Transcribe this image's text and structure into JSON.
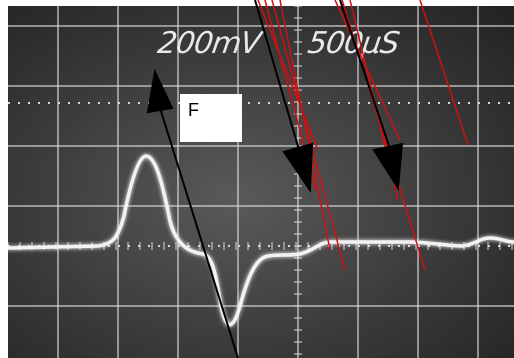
{
  "scope": {
    "volts_per_div": "200mV",
    "time_per_div": "500µS"
  },
  "annotation": {
    "label": "F"
  },
  "colors": {
    "trace": "#f2f2f2",
    "grid": "#d8d8d8",
    "annotation_line": "#000000",
    "red_lines": "#d01010"
  }
}
